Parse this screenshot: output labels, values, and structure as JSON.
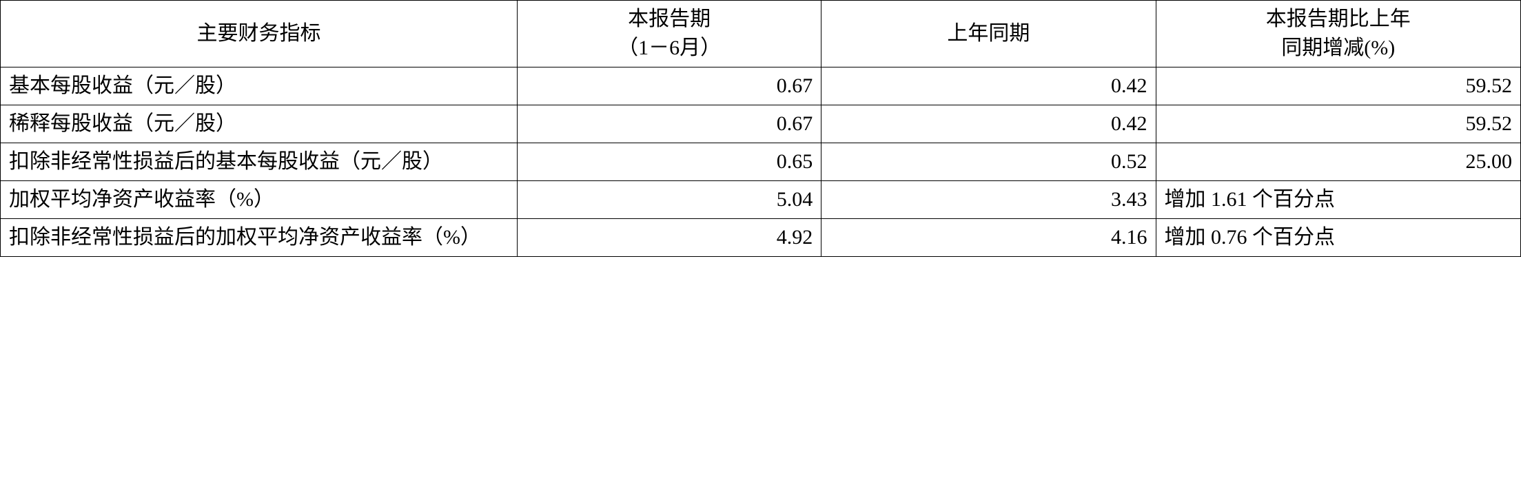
{
  "table": {
    "type": "table",
    "background_color": "#ffffff",
    "border_color": "#000000",
    "font_family": "SimSun",
    "font_size": 30,
    "columns": [
      {
        "label_line1": "主要财务指标",
        "label_line2": "",
        "width_pct": 34,
        "align_header": "center",
        "align_body": "left"
      },
      {
        "label_line1": "本报告期",
        "label_line2": "（1－6月）",
        "width_pct": 20,
        "align_header": "center",
        "align_body": "right"
      },
      {
        "label_line1": "上年同期",
        "label_line2": "",
        "width_pct": 22,
        "align_header": "center",
        "align_body": "right"
      },
      {
        "label_line1": "本报告期比上年",
        "label_line2": "同期增减(%)",
        "width_pct": 24,
        "align_header": "center",
        "align_body": "right"
      }
    ],
    "rows": [
      {
        "label": "基本每股收益（元／股）",
        "current": "0.67",
        "prior": "0.42",
        "change": "59.52",
        "change_align": "right"
      },
      {
        "label": "稀释每股收益（元／股）",
        "current": "0.67",
        "prior": "0.42",
        "change": "59.52",
        "change_align": "right"
      },
      {
        "label": "扣除非经常性损益后的基本每股收益（元／股）",
        "current": "0.65",
        "prior": "0.52",
        "change": "25.00",
        "change_align": "right"
      },
      {
        "label": "加权平均净资产收益率（%）",
        "current": "5.04",
        "prior": "3.43",
        "change": "增加 1.61 个百分点",
        "change_align": "left"
      },
      {
        "label": "扣除非经常性损益后的加权平均净资产收益率（%）",
        "current": "4.92",
        "prior": "4.16",
        "change": "增加 0.76 个百分点",
        "change_align": "left"
      }
    ]
  }
}
